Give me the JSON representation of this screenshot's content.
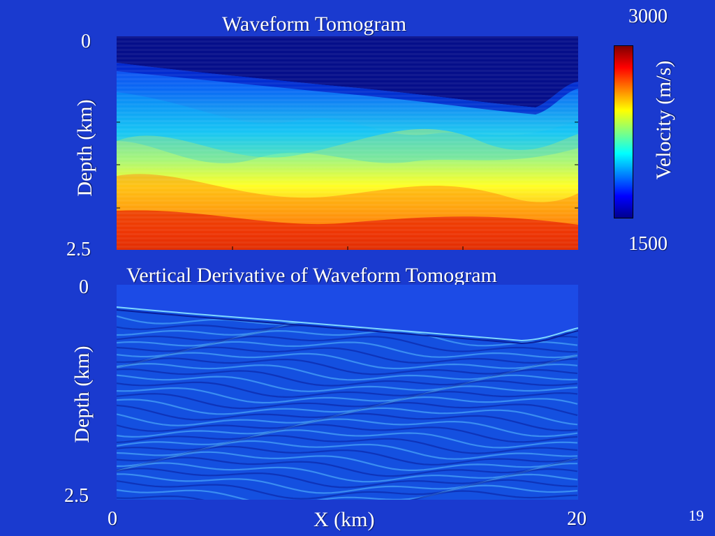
{
  "slide": {
    "number": "19",
    "background_color": "#1a3acf"
  },
  "top_panel": {
    "title": "Waveform Tomogram",
    "y_label": "Depth (km)",
    "y_tick_top": "0",
    "y_tick_bottom": "2.5"
  },
  "colorbar": {
    "label": "Velocity (m/s)",
    "max_label": "3000",
    "min_label": "1500",
    "colors": [
      "#00008f",
      "#0000ff",
      "#0080ff",
      "#00ffff",
      "#80ff80",
      "#ffff00",
      "#ff8000",
      "#ff0000",
      "#800000"
    ]
  },
  "bottom_panel": {
    "title": "Vertical Derivative of Waveform Tomogram",
    "y_label": "Depth (km)",
    "y_tick_top": "0",
    "y_tick_bottom": "2.5",
    "x_label": "X (km)",
    "x_tick_left": "0",
    "x_tick_right": "20"
  }
}
